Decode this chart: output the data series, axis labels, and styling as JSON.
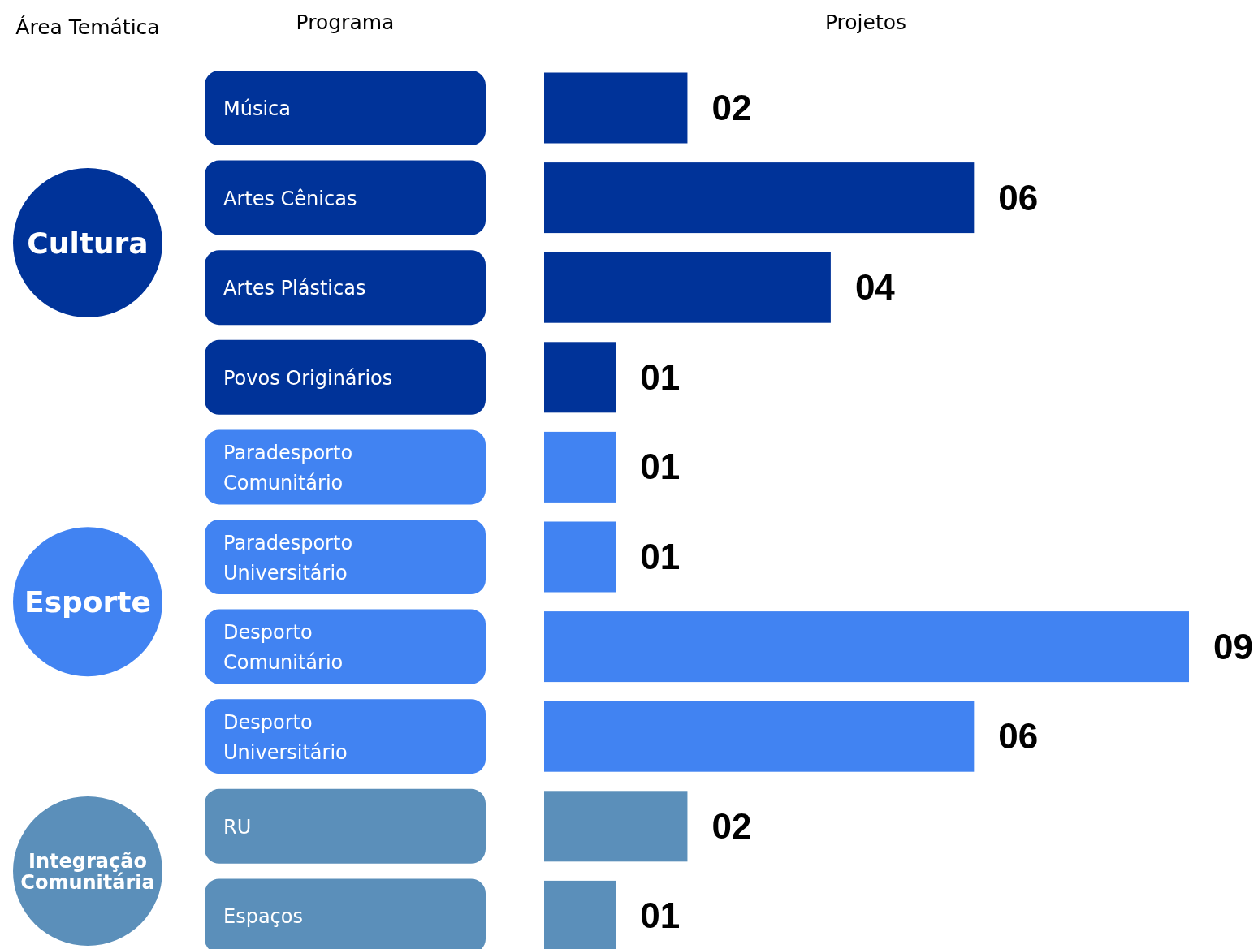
{
  "chart_data": {
    "type": "bar",
    "orientation": "horizontal",
    "xlabel": "Projetos",
    "categories": [
      "Música",
      "Artes Cênicas",
      "Artes Plásticas",
      "Povos Originários",
      "Paradesporto Comunitário",
      "Paradesporto Universitário",
      "Desporto Comunitário",
      "Desporto Universitário",
      "RU",
      "Espaços"
    ],
    "values": [
      2,
      6,
      4,
      1,
      1,
      1,
      9,
      6,
      2,
      1
    ],
    "value_labels": [
      "02",
      "06",
      "04",
      "01",
      "01",
      "01",
      "09",
      "06",
      "02",
      "01"
    ],
    "colors": [
      "#003399",
      "#003399",
      "#003399",
      "#003399",
      "#4183f2",
      "#4183f2",
      "#4183f2",
      "#4183f2",
      "#5b8fba",
      "#5b8fba"
    ],
    "annotations": [
      "Área Temática",
      "Programa",
      "Cultura",
      "Esporte",
      "Integração Comunitária"
    ]
  }
}
